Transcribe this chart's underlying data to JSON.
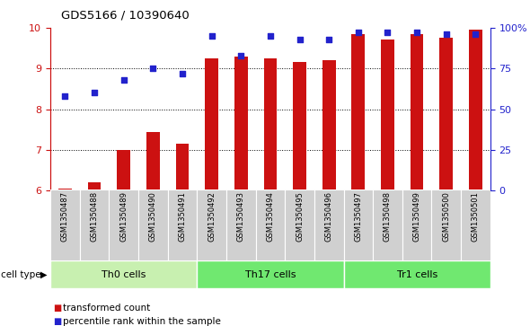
{
  "title": "GDS5166 / 10390640",
  "samples": [
    "GSM1350487",
    "GSM1350488",
    "GSM1350489",
    "GSM1350490",
    "GSM1350491",
    "GSM1350492",
    "GSM1350493",
    "GSM1350494",
    "GSM1350495",
    "GSM1350496",
    "GSM1350497",
    "GSM1350498",
    "GSM1350499",
    "GSM1350500",
    "GSM1350501"
  ],
  "transformed_count": [
    6.05,
    6.2,
    7.0,
    7.45,
    7.15,
    9.25,
    9.3,
    9.25,
    9.15,
    9.2,
    9.85,
    9.7,
    9.85,
    9.75,
    9.95
  ],
  "percentile_rank_pct": [
    58,
    60,
    68,
    75,
    72,
    95,
    83,
    95,
    93,
    93,
    97,
    97,
    97,
    96,
    96
  ],
  "cell_groups": [
    {
      "label": "Th0 cells",
      "start": 0,
      "end": 4,
      "color": "#c8f0b0"
    },
    {
      "label": "Th17 cells",
      "start": 5,
      "end": 9,
      "color": "#70e870"
    },
    {
      "label": "Tr1 cells",
      "start": 10,
      "end": 14,
      "color": "#70e870"
    }
  ],
  "ylim_left": [
    6,
    10
  ],
  "ylim_right": [
    0,
    100
  ],
  "bar_color": "#cc1111",
  "dot_color": "#2222cc",
  "tick_color_left": "#cc1111",
  "tick_color_right": "#2222cc",
  "yticks_left": [
    6,
    7,
    8,
    9,
    10
  ],
  "yticks_right": [
    0,
    25,
    50,
    75,
    100
  ],
  "ytick_labels_right": [
    "0",
    "25",
    "50",
    "75",
    "100%"
  ],
  "legend_items": [
    {
      "label": "transformed count",
      "color": "#cc1111"
    },
    {
      "label": "percentile rank within the sample",
      "color": "#2222cc"
    }
  ],
  "cell_type_label": "cell type",
  "sample_bg_color": "#d0d0d0",
  "bar_width": 0.45
}
